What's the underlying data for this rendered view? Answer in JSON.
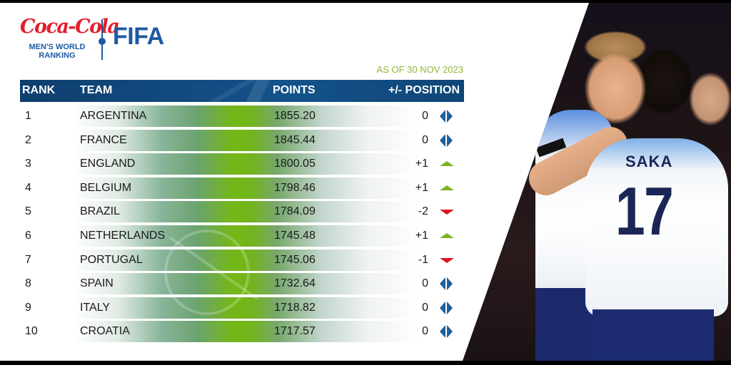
{
  "branding": {
    "sponsor": "Coca-Cola",
    "subtitle_line1": "MEN'S WORLD",
    "subtitle_line2": "RANKING",
    "organization": "FIFA"
  },
  "as_of": "AS OF 30 NOV 2023",
  "table": {
    "headers": {
      "rank": "RANK",
      "team": "TEAM",
      "points": "POINTS",
      "position_change": "+/- POSITION"
    },
    "rows": [
      {
        "rank": "1",
        "team": "ARGENTINA",
        "points": "1855.20",
        "change": "0",
        "trend": "same"
      },
      {
        "rank": "2",
        "team": "FRANCE",
        "points": "1845.44",
        "change": "0",
        "trend": "same"
      },
      {
        "rank": "3",
        "team": "ENGLAND",
        "points": "1800.05",
        "change": "+1",
        "trend": "up"
      },
      {
        "rank": "4",
        "team": "BELGIUM",
        "points": "1798.46",
        "change": "+1",
        "trend": "up"
      },
      {
        "rank": "5",
        "team": "BRAZIL",
        "points": "1784.09",
        "change": "-2",
        "trend": "down"
      },
      {
        "rank": "6",
        "team": "NETHERLANDS",
        "points": "1745.48",
        "change": "+1",
        "trend": "up"
      },
      {
        "rank": "7",
        "team": "PORTUGAL",
        "points": "1745.06",
        "change": "-1",
        "trend": "down"
      },
      {
        "rank": "8",
        "team": "SPAIN",
        "points": "1732.64",
        "change": "0",
        "trend": "same"
      },
      {
        "rank": "9",
        "team": "ITALY",
        "points": "1718.82",
        "change": "0",
        "trend": "same"
      },
      {
        "rank": "10",
        "team": "CROATIA",
        "points": "1717.57",
        "change": "0",
        "trend": "same"
      }
    ]
  },
  "trend_icons": {
    "same": "left-right-arrows-icon",
    "up": "triangle-up-icon",
    "down": "triangle-down-icon"
  },
  "colors": {
    "header_blue": "#14528a",
    "brand_blue": "#1e5aa3",
    "coke_red": "#e41e2b",
    "accent_green": "#8cba2c",
    "up_green": "#7cb227",
    "down_red": "#d9171f",
    "same_blue": "#1a5f9a"
  },
  "photo": {
    "shirt_name": "SAKA",
    "shirt_number": "17"
  }
}
